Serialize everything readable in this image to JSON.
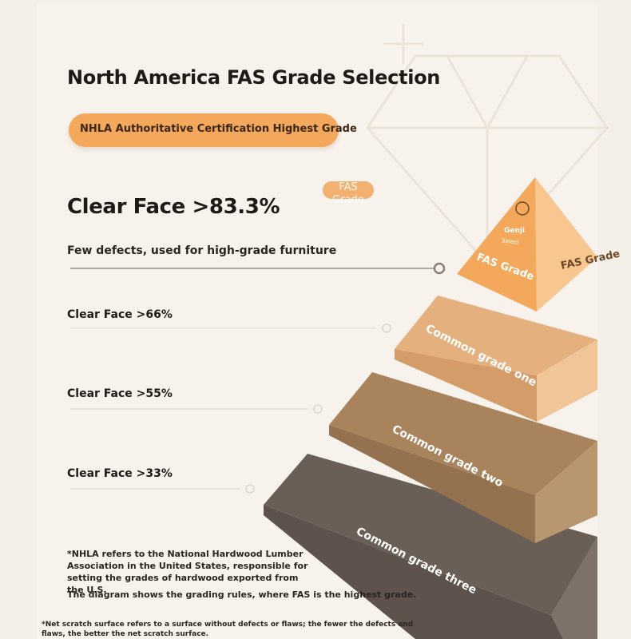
{
  "title": "North America FAS Grade Selection",
  "certification_label": "NHLA Authoritative Certification Highest Grade",
  "fas_tag": "FAS Grade",
  "grades": [
    {
      "clear_face": "Clear Face >83.3%",
      "description": "Few defects, used for high-grade furniture",
      "pyramid_label": "FAS Grade",
      "side_label": "FAS Grade",
      "color": "#f3a85b"
    },
    {
      "clear_face": "Clear Face >66%",
      "pyramid_label": "Common grade one",
      "color": "#e4b07e"
    },
    {
      "clear_face": "Clear Face >55%",
      "pyramid_label": "Common grade two",
      "color": "#a8835c"
    },
    {
      "clear_face": "Clear Face >33%",
      "pyramid_label": "Common grade three",
      "color": "#6a5f57"
    }
  ],
  "logo": {
    "brand": "Genji",
    "sub": "Select"
  },
  "notes": {
    "nhla": "*NHLA refers to the National Hardwood Lumber Association in the United States, responsible for setting the grades of hardwood exported from the U.S.",
    "diagram": "The diagram shows the grading rules, where FAS is the highest grade.",
    "scratch": "*Net scratch surface refers to a surface without defects or flaws; the fewer the defects and flaws, the better the net scratch surface."
  },
  "colors": {
    "background": "#f3efe9",
    "panel": "#f7f3ec",
    "accent": "#f3a85b",
    "text": "#1f1a17"
  }
}
